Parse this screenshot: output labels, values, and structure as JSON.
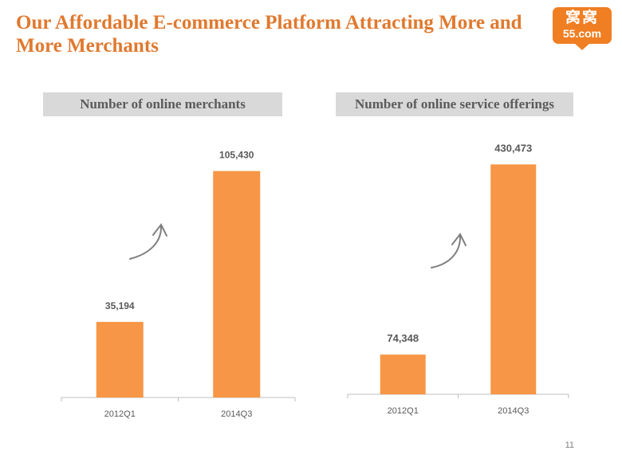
{
  "slide": {
    "title": "Our Affordable E-commerce Platform Attracting More and More Merchants",
    "page_number": "11"
  },
  "logo": {
    "chinese_text": "窝窝",
    "text": "55.com"
  },
  "headers": {
    "left": "Number of online merchants",
    "right": "Number of online service offerings"
  },
  "chart_data": [
    {
      "type": "bar",
      "categories": [
        "2012Q1",
        "2014Q3"
      ],
      "values": [
        35194,
        105430
      ],
      "value_labels": [
        "35,194",
        "105,430"
      ],
      "color": "#f79646",
      "ylim": [
        0,
        112000
      ]
    },
    {
      "type": "bar",
      "categories": [
        "2012Q1",
        "2014Q3"
      ],
      "values": [
        74348,
        430473
      ],
      "value_labels": [
        "74,348",
        "430,473"
      ],
      "color": "#f79646",
      "ylim": [
        0,
        440000
      ]
    }
  ],
  "colors": {
    "title": "#e0792f",
    "bar": "#f79646",
    "header_bg": "#d9d9d9",
    "arrow": "#7f7f7f"
  }
}
